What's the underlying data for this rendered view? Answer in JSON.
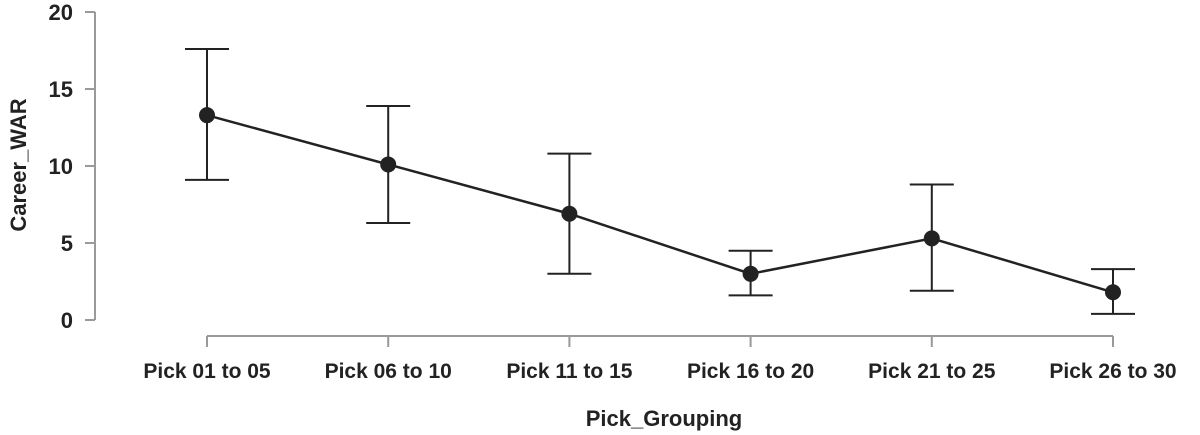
{
  "chart_data": {
    "type": "line",
    "title": "",
    "xlabel": "Pick_Grouping",
    "ylabel": "Career_WAR",
    "ylim": [
      0,
      20
    ],
    "yticks": [
      "0",
      "5",
      "10",
      "15",
      "20"
    ],
    "grid": false,
    "legend": "none",
    "categories": [
      "Pick 01 to 05",
      "Pick 06 to 10",
      "Pick 11 to 15",
      "Pick 16 to 20",
      "Pick 21 to 25",
      "Pick 26 to 30"
    ],
    "series": [
      {
        "values": [
          13.3,
          10.1,
          6.9,
          3.0,
          5.3,
          1.8
        ],
        "error_low": [
          9.1,
          6.3,
          3.0,
          1.6,
          1.9,
          0.4
        ],
        "error_high": [
          17.6,
          13.9,
          10.8,
          4.5,
          8.8,
          3.3
        ]
      }
    ],
    "colors": {
      "line": "#222222",
      "axis": "#9a9a9a"
    }
  }
}
